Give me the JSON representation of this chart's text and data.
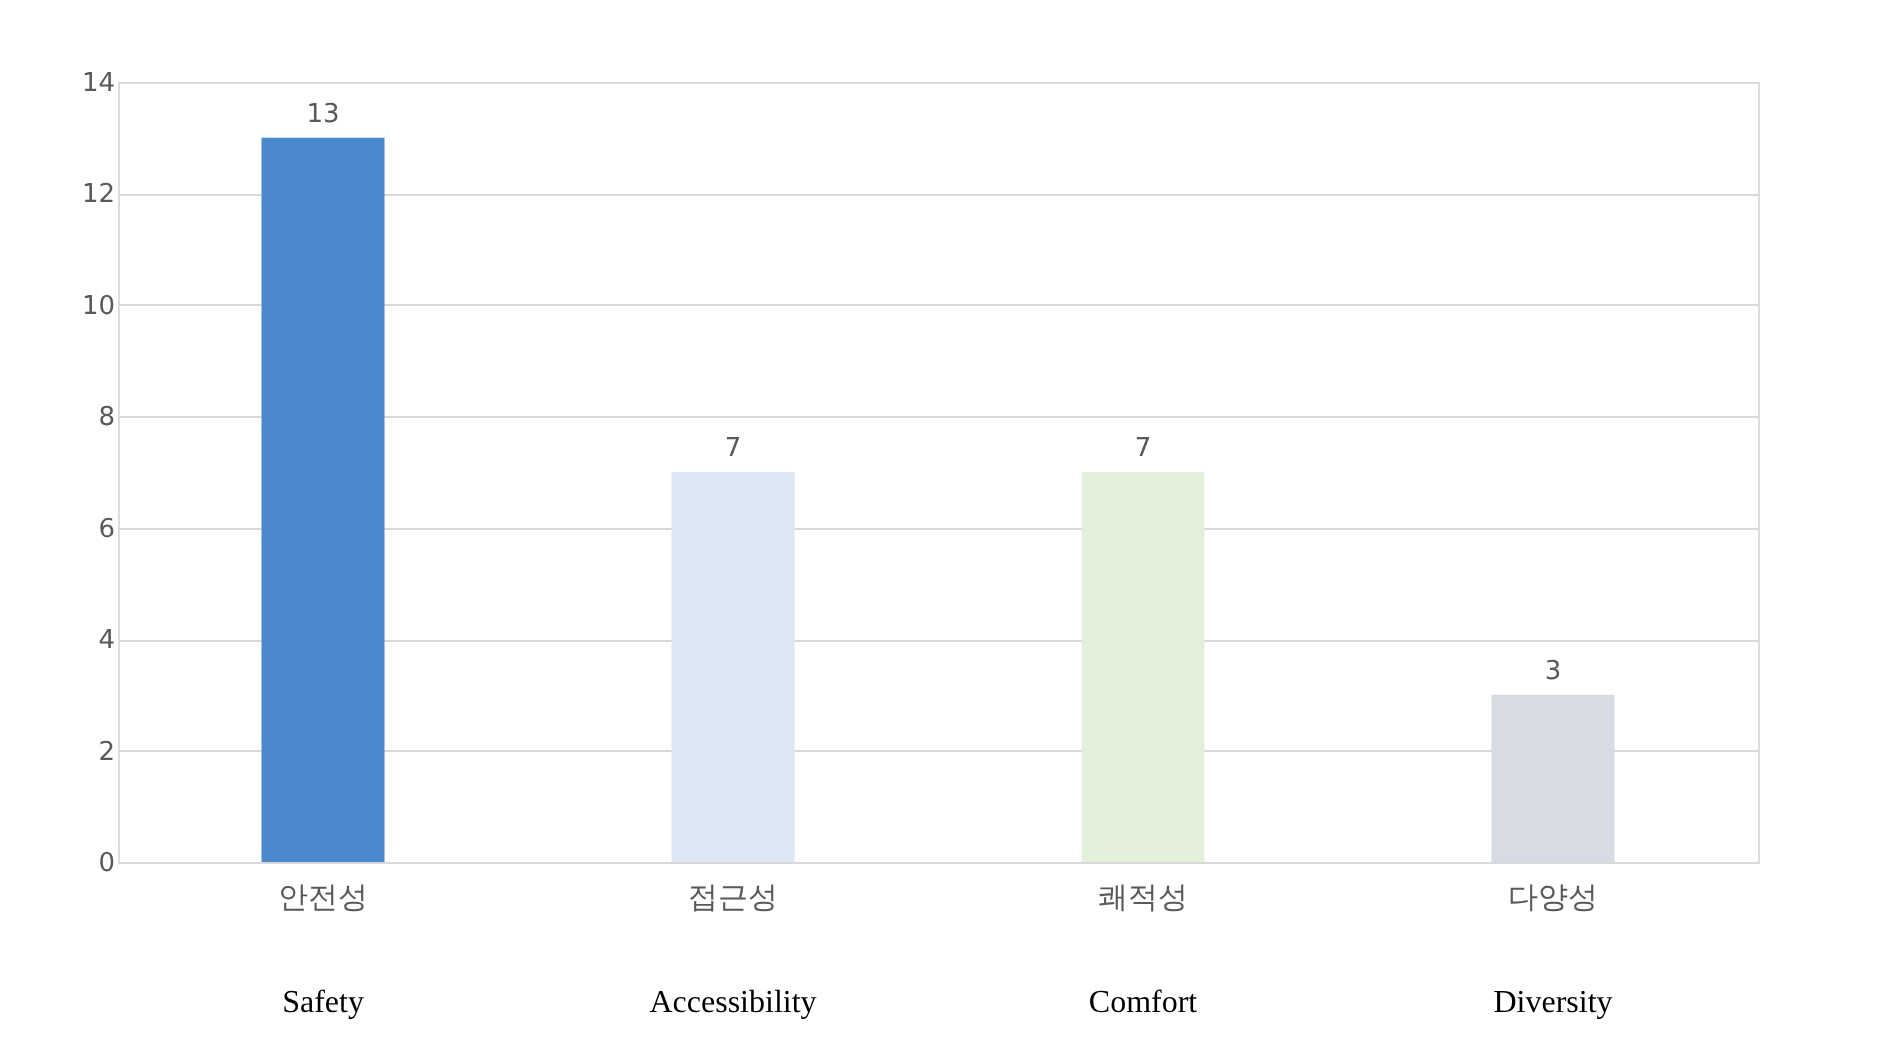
{
  "chart_data": {
    "type": "bar",
    "categories": [
      "안전성",
      "접근성",
      "쾌적성",
      "다양성"
    ],
    "values": [
      13,
      7,
      7,
      3
    ],
    "colors": [
      "#4a89cc",
      "#dbe7f4",
      "#e3f0db",
      "#d7dbe4"
    ],
    "ylim": [
      0,
      14
    ],
    "yticks": [
      0,
      2,
      4,
      6,
      8,
      10,
      12,
      14
    ],
    "grid": "y",
    "data_labels": true,
    "annotations": [
      "Safety",
      "Accessibility",
      "Comfort",
      "Diversity"
    ]
  }
}
